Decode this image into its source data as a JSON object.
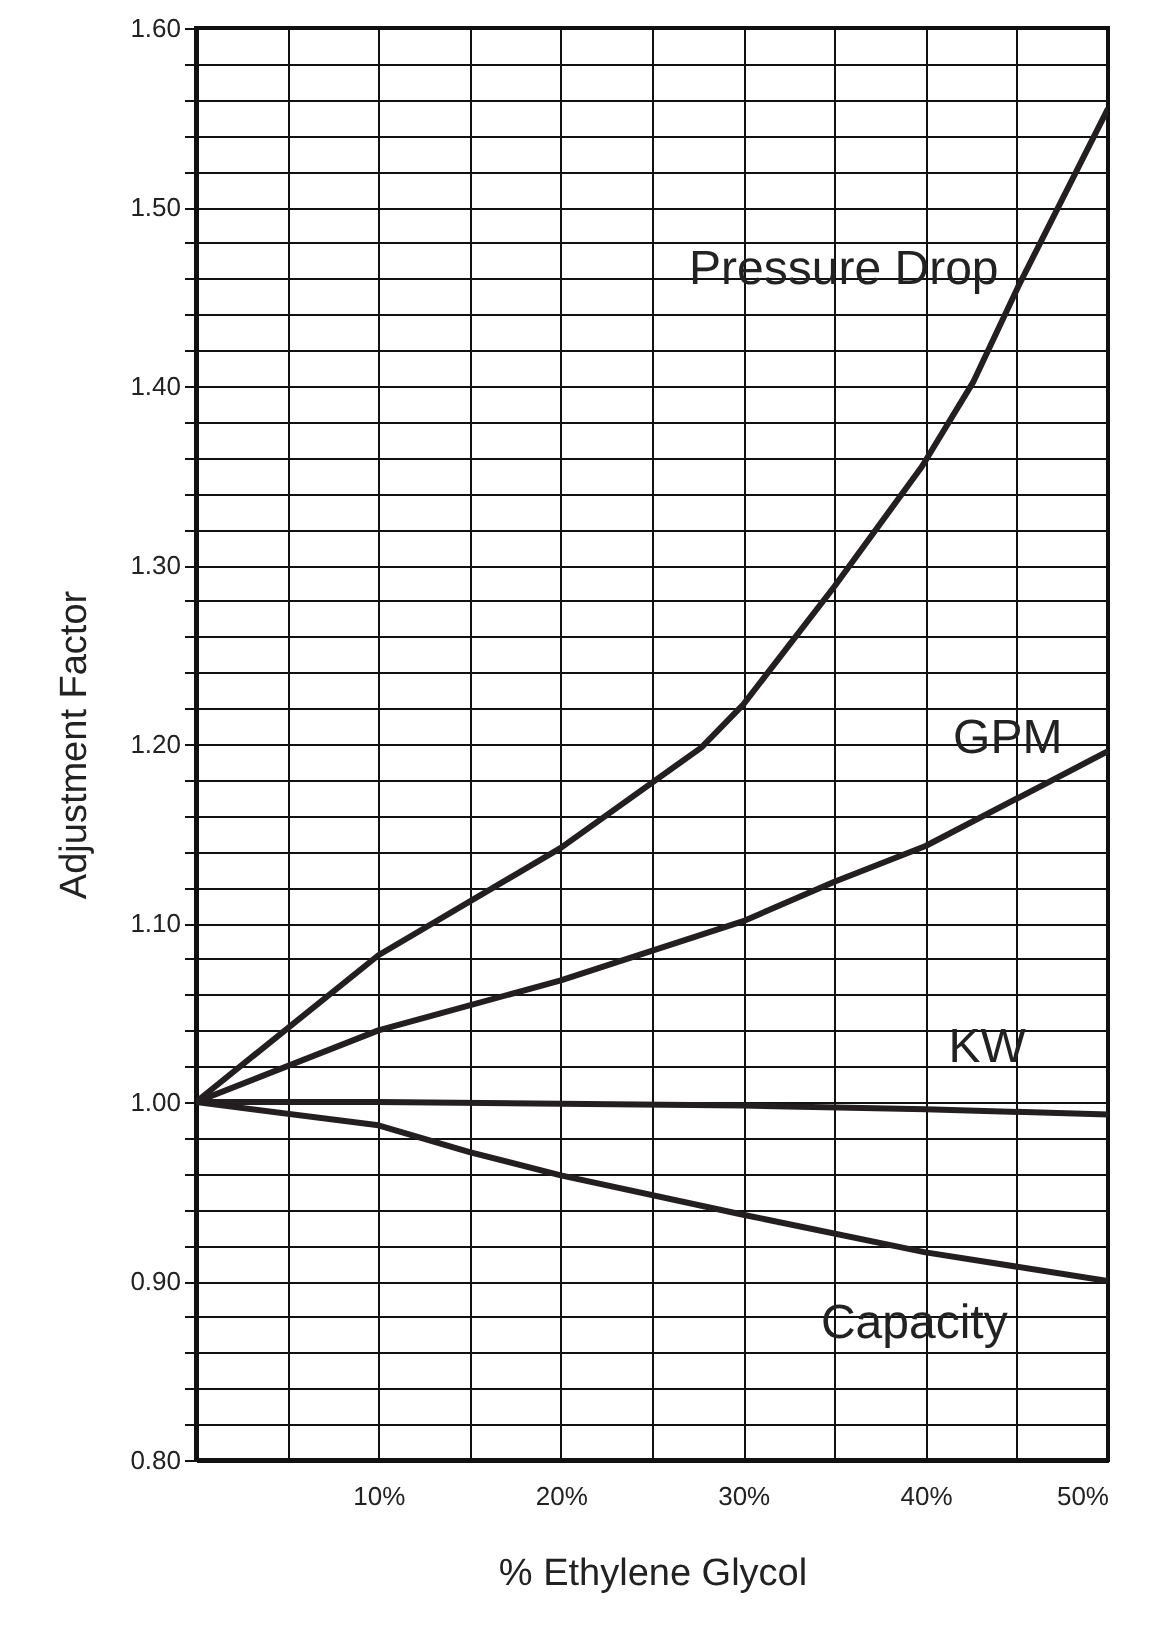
{
  "chart_data": {
    "type": "line",
    "xlabel": "% Ethylene Glycol",
    "ylabel": "Adjustment Factor",
    "xlim": [
      0,
      50
    ],
    "ylim": [
      0.8,
      1.6
    ],
    "xticks": [
      {
        "value": 0,
        "label": null
      },
      {
        "value": 5,
        "label": null
      },
      {
        "value": 10,
        "label": "10%"
      },
      {
        "value": 15,
        "label": null
      },
      {
        "value": 20,
        "label": "20%"
      },
      {
        "value": 25,
        "label": null
      },
      {
        "value": 30,
        "label": "30%"
      },
      {
        "value": 35,
        "label": null
      },
      {
        "value": 40,
        "label": "40%"
      },
      {
        "value": 45,
        "label": null
      },
      {
        "value": 50,
        "label": "50%"
      }
    ],
    "yticks": [
      {
        "value": 0.8,
        "label": "0.80"
      },
      {
        "value": 0.82,
        "label": null
      },
      {
        "value": 0.84,
        "label": null
      },
      {
        "value": 0.86,
        "label": null
      },
      {
        "value": 0.88,
        "label": null
      },
      {
        "value": 0.9,
        "label": "0.90"
      },
      {
        "value": 0.92,
        "label": null
      },
      {
        "value": 0.94,
        "label": null
      },
      {
        "value": 0.96,
        "label": null
      },
      {
        "value": 0.98,
        "label": null
      },
      {
        "value": 1.0,
        "label": "1.00"
      },
      {
        "value": 1.02,
        "label": null
      },
      {
        "value": 1.04,
        "label": null
      },
      {
        "value": 1.06,
        "label": null
      },
      {
        "value": 1.08,
        "label": null
      },
      {
        "value": 1.1,
        "label": "1.10"
      },
      {
        "value": 1.12,
        "label": null
      },
      {
        "value": 1.14,
        "label": null
      },
      {
        "value": 1.16,
        "label": null
      },
      {
        "value": 1.18,
        "label": null
      },
      {
        "value": 1.2,
        "label": "1.20"
      },
      {
        "value": 1.22,
        "label": null
      },
      {
        "value": 1.24,
        "label": null
      },
      {
        "value": 1.26,
        "label": null
      },
      {
        "value": 1.28,
        "label": null
      },
      {
        "value": 1.3,
        "label": "1.30"
      },
      {
        "value": 1.32,
        "label": null
      },
      {
        "value": 1.34,
        "label": null
      },
      {
        "value": 1.36,
        "label": null
      },
      {
        "value": 1.38,
        "label": null
      },
      {
        "value": 1.4,
        "label": "1.40"
      },
      {
        "value": 1.42,
        "label": null
      },
      {
        "value": 1.44,
        "label": null
      },
      {
        "value": 1.46,
        "label": null
      },
      {
        "value": 1.48,
        "label": null
      },
      {
        "value": 1.5,
        "label": "1.50"
      },
      {
        "value": 1.52,
        "label": null
      },
      {
        "value": 1.54,
        "label": null
      },
      {
        "value": 1.56,
        "label": null
      },
      {
        "value": 1.58,
        "label": null
      },
      {
        "value": 1.6,
        "label": "1.60"
      }
    ],
    "grid": true,
    "series": [
      {
        "name": "Pressure Drop",
        "color": "#231f20",
        "x": [
          0,
          10,
          20,
          27.7,
          30,
          35,
          39.8,
          42.6,
          45.1,
          50
        ],
        "values": [
          1.0,
          1.082,
          1.142,
          1.198,
          1.222,
          1.288,
          1.355,
          1.402,
          1.456,
          1.555
        ]
      },
      {
        "name": "GPM",
        "color": "#231f20",
        "x": [
          0,
          10,
          20,
          30,
          35,
          40,
          50
        ],
        "values": [
          1.0,
          1.04,
          1.068,
          1.101,
          1.123,
          1.143,
          1.196
        ]
      },
      {
        "name": "KW",
        "color": "#231f20",
        "x": [
          0,
          10,
          20,
          30,
          40,
          50
        ],
        "values": [
          1.0,
          1.0,
          0.999,
          0.998,
          0.996,
          0.993
        ]
      },
      {
        "name": "Capacity",
        "color": "#231f20",
        "x": [
          0,
          10,
          15,
          20,
          30,
          40,
          50
        ],
        "values": [
          1.0,
          0.987,
          0.972,
          0.959,
          0.937,
          0.916,
          0.9
        ]
      }
    ]
  }
}
